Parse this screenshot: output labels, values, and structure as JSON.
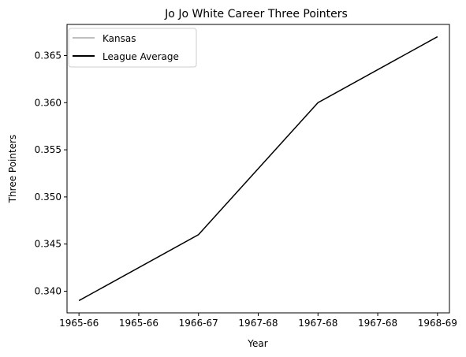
{
  "chart_data": {
    "type": "line",
    "title": "Jo Jo White Career Three Pointers",
    "xlabel": "Year",
    "ylabel": "Three Pointers",
    "x_tick_labels": [
      "1965-66",
      "1965-66",
      "1966-67",
      "1967-68",
      "1967-68",
      "1967-68",
      "1968-69"
    ],
    "y_tick_labels": [
      "0.340",
      "0.345",
      "0.350",
      "0.355",
      "0.360",
      "0.365"
    ],
    "y_ticks": [
      0.34,
      0.345,
      0.35,
      0.355,
      0.36,
      0.365
    ],
    "x_range": [
      1965.4,
      1968.6
    ],
    "ylim": [
      0.3377,
      0.3683
    ],
    "grid": false,
    "legend_position": "top-left",
    "series": [
      {
        "name": "Kansas",
        "color": "#bfbfbf",
        "x": [],
        "values": []
      },
      {
        "name": "League Average",
        "color": "#000000",
        "x": [
          1965.5,
          1966.5,
          1967.5,
          1968.5
        ],
        "values": [
          0.339,
          0.346,
          0.36,
          0.367
        ]
      }
    ]
  }
}
